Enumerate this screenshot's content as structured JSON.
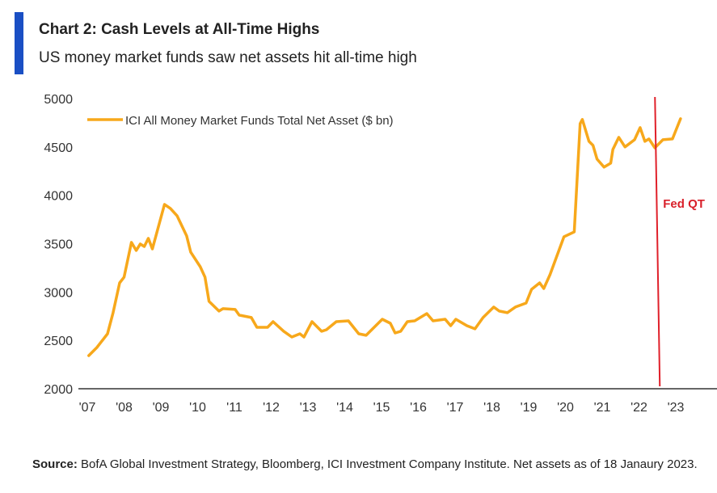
{
  "header": {
    "title": "Chart 2: Cash Levels at All-Time Highs",
    "subtitle": "US money market funds saw net assets hit all-time high",
    "accent_color": "#1a4fc4"
  },
  "chart_data": {
    "type": "line",
    "title": "Chart 2: Cash Levels at All-Time Highs",
    "subtitle": "US money market funds saw net assets hit all-time high",
    "xlabel": "",
    "ylabel": "",
    "xlim": [
      2007,
      2024
    ],
    "ylim": [
      2000,
      5000
    ],
    "yticks": [
      2000,
      2500,
      3000,
      3500,
      4000,
      4500,
      5000
    ],
    "xticks": [
      2007,
      2008,
      2009,
      2010,
      2011,
      2012,
      2013,
      2014,
      2015,
      2016,
      2017,
      2018,
      2019,
      2020,
      2021,
      2022,
      2023
    ],
    "xtick_labels": [
      "'07",
      "'08",
      "'09",
      "'10",
      "'11",
      "'12",
      "'13",
      "'14",
      "'15",
      "'16",
      "'17",
      "'18",
      "'19",
      "'20",
      "'21",
      "'22",
      "'23"
    ],
    "grid": false,
    "legend_position": "top-left",
    "series": [
      {
        "name": "ICI All Money Market Funds Total Net Asset ($ bn)",
        "color": "#f7a81b",
        "points": [
          [
            2007.04,
            2343
          ],
          [
            2007.26,
            2426
          ],
          [
            2007.55,
            2568
          ],
          [
            2007.7,
            2786
          ],
          [
            2007.88,
            3095
          ],
          [
            2008.0,
            3154
          ],
          [
            2008.2,
            3513
          ],
          [
            2008.33,
            3430
          ],
          [
            2008.44,
            3497
          ],
          [
            2008.55,
            3471
          ],
          [
            2008.66,
            3555
          ],
          [
            2008.77,
            3446
          ],
          [
            2009.1,
            3906
          ],
          [
            2009.26,
            3864
          ],
          [
            2009.44,
            3789
          ],
          [
            2009.7,
            3580
          ],
          [
            2009.81,
            3413
          ],
          [
            2010.07,
            3262
          ],
          [
            2010.2,
            3154
          ],
          [
            2010.31,
            2903
          ],
          [
            2010.58,
            2803
          ],
          [
            2010.69,
            2828
          ],
          [
            2011.02,
            2820
          ],
          [
            2011.13,
            2761
          ],
          [
            2011.46,
            2736
          ],
          [
            2011.61,
            2635
          ],
          [
            2011.9,
            2635
          ],
          [
            2012.05,
            2694
          ],
          [
            2012.34,
            2594
          ],
          [
            2012.56,
            2535
          ],
          [
            2012.78,
            2568
          ],
          [
            2012.89,
            2535
          ],
          [
            2013.11,
            2694
          ],
          [
            2013.37,
            2594
          ],
          [
            2013.5,
            2610
          ],
          [
            2013.77,
            2694
          ],
          [
            2014.1,
            2702
          ],
          [
            2014.38,
            2568
          ],
          [
            2014.58,
            2552
          ],
          [
            2015.02,
            2719
          ],
          [
            2015.24,
            2677
          ],
          [
            2015.37,
            2577
          ],
          [
            2015.52,
            2594
          ],
          [
            2015.7,
            2694
          ],
          [
            2015.9,
            2702
          ],
          [
            2016.23,
            2777
          ],
          [
            2016.4,
            2702
          ],
          [
            2016.73,
            2719
          ],
          [
            2016.88,
            2652
          ],
          [
            2017.02,
            2719
          ],
          [
            2017.32,
            2652
          ],
          [
            2017.54,
            2619
          ],
          [
            2017.76,
            2736
          ],
          [
            2018.05,
            2845
          ],
          [
            2018.2,
            2803
          ],
          [
            2018.42,
            2786
          ],
          [
            2018.64,
            2845
          ],
          [
            2018.93,
            2886
          ],
          [
            2019.08,
            3028
          ],
          [
            2019.3,
            3095
          ],
          [
            2019.41,
            3036
          ],
          [
            2019.58,
            3179
          ],
          [
            2019.96,
            3572
          ],
          [
            2020.24,
            3622
          ],
          [
            2020.4,
            4742
          ],
          [
            2020.46,
            4784
          ],
          [
            2020.64,
            4558
          ],
          [
            2020.75,
            4516
          ],
          [
            2020.86,
            4374
          ],
          [
            2021.05,
            4291
          ],
          [
            2021.23,
            4332
          ],
          [
            2021.29,
            4474
          ],
          [
            2021.45,
            4600
          ],
          [
            2021.62,
            4500
          ],
          [
            2021.88,
            4575
          ],
          [
            2022.03,
            4700
          ],
          [
            2022.16,
            4558
          ],
          [
            2022.27,
            4583
          ],
          [
            2022.43,
            4491
          ],
          [
            2022.65,
            4575
          ],
          [
            2022.91,
            4583
          ],
          [
            2023.13,
            4792
          ]
        ]
      }
    ],
    "annotations": [
      {
        "label": "Fed QT",
        "x": 2022.5,
        "type": "vertical-line",
        "color": "#d9202a"
      }
    ]
  },
  "footer": {
    "source_label": "Source:",
    "source_text": " BofA Global Investment Strategy, Bloomberg, ICI Investment Company Institute. Net assets as of 18 Janaury 2023."
  }
}
